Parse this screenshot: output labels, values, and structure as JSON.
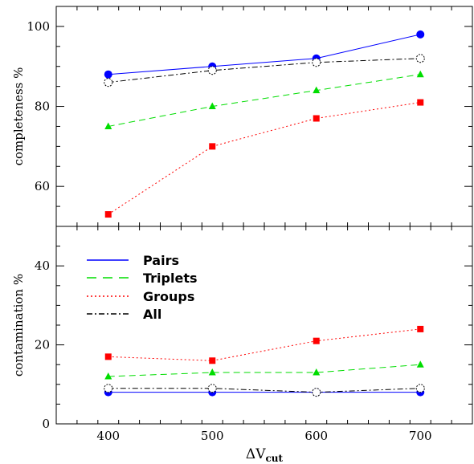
{
  "chart_data": [
    {
      "type": "line",
      "ylabel": "completeness %",
      "xlabel": "",
      "xlim": [
        350,
        750
      ],
      "ylim": [
        50,
        105
      ],
      "x": [
        400,
        500,
        600,
        700
      ],
      "xticks": [
        "400",
        "500",
        "600",
        "700"
      ],
      "yticks": [
        60,
        80,
        100
      ],
      "ytick_labels": [
        "60",
        "80",
        "100"
      ],
      "series": [
        {
          "name": "Pairs",
          "values": [
            88,
            90,
            92,
            98
          ],
          "color": "#0000ff",
          "dash": "solid",
          "marker": "circle"
        },
        {
          "name": "Triplets",
          "values": [
            75,
            80,
            84,
            88
          ],
          "color": "#00dd00",
          "dash": "dashed",
          "marker": "triangle"
        },
        {
          "name": "Groups",
          "values": [
            53,
            70,
            77,
            81
          ],
          "color": "#ff0000",
          "dash": "dotted",
          "marker": "square"
        },
        {
          "name": "All",
          "values": [
            86,
            89,
            91,
            92
          ],
          "color": "#000000",
          "dash": "dashdot",
          "marker": "open-circle"
        }
      ]
    },
    {
      "type": "line",
      "ylabel": "contamination %",
      "xlabel": "ΔV",
      "xlabel_sub": "cut",
      "xlim": [
        350,
        750
      ],
      "ylim": [
        0,
        50
      ],
      "x": [
        400,
        500,
        600,
        700
      ],
      "xticks": [
        "400",
        "500",
        "600",
        "700"
      ],
      "yticks": [
        0,
        20,
        40
      ],
      "ytick_labels": [
        "0",
        "20",
        "40"
      ],
      "legend": {
        "location": "upper-left",
        "entries": [
          "Pairs",
          "Triplets",
          "Groups",
          "All"
        ]
      },
      "series": [
        {
          "name": "Pairs",
          "values": [
            8,
            8,
            8,
            8
          ],
          "color": "#0000ff",
          "dash": "solid",
          "marker": "circle"
        },
        {
          "name": "Triplets",
          "values": [
            12,
            13,
            13,
            15
          ],
          "color": "#00dd00",
          "dash": "dashed",
          "marker": "triangle"
        },
        {
          "name": "Groups",
          "values": [
            17,
            16,
            21,
            24
          ],
          "color": "#ff0000",
          "dash": "dotted",
          "marker": "square"
        },
        {
          "name": "All",
          "values": [
            9,
            9,
            8,
            9
          ],
          "color": "#000000",
          "dash": "dashdot",
          "marker": "open-circle"
        }
      ]
    }
  ]
}
